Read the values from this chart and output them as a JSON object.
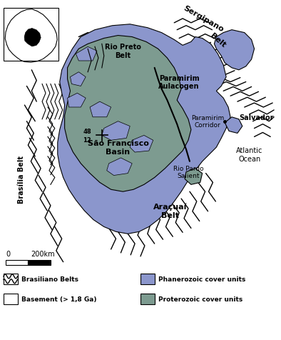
{
  "bg_color": "#ffffff",
  "phanerozoic_color": "#8b96cc",
  "proterozoic_color": "#7d9b90",
  "line_color": "#000000",
  "legend": {
    "brasiliano_label": "Brasiliano Belts",
    "basement_label": "Basement (> 1,8 Ga)",
    "phanerozoic_label": "Phanerozoic cover units",
    "proterozoic_label": "Proterozoic cover units"
  },
  "coords_label": {
    "lat": "12",
    "lon": "48"
  },
  "scale": {
    "zero": "0",
    "dist": "200km"
  }
}
